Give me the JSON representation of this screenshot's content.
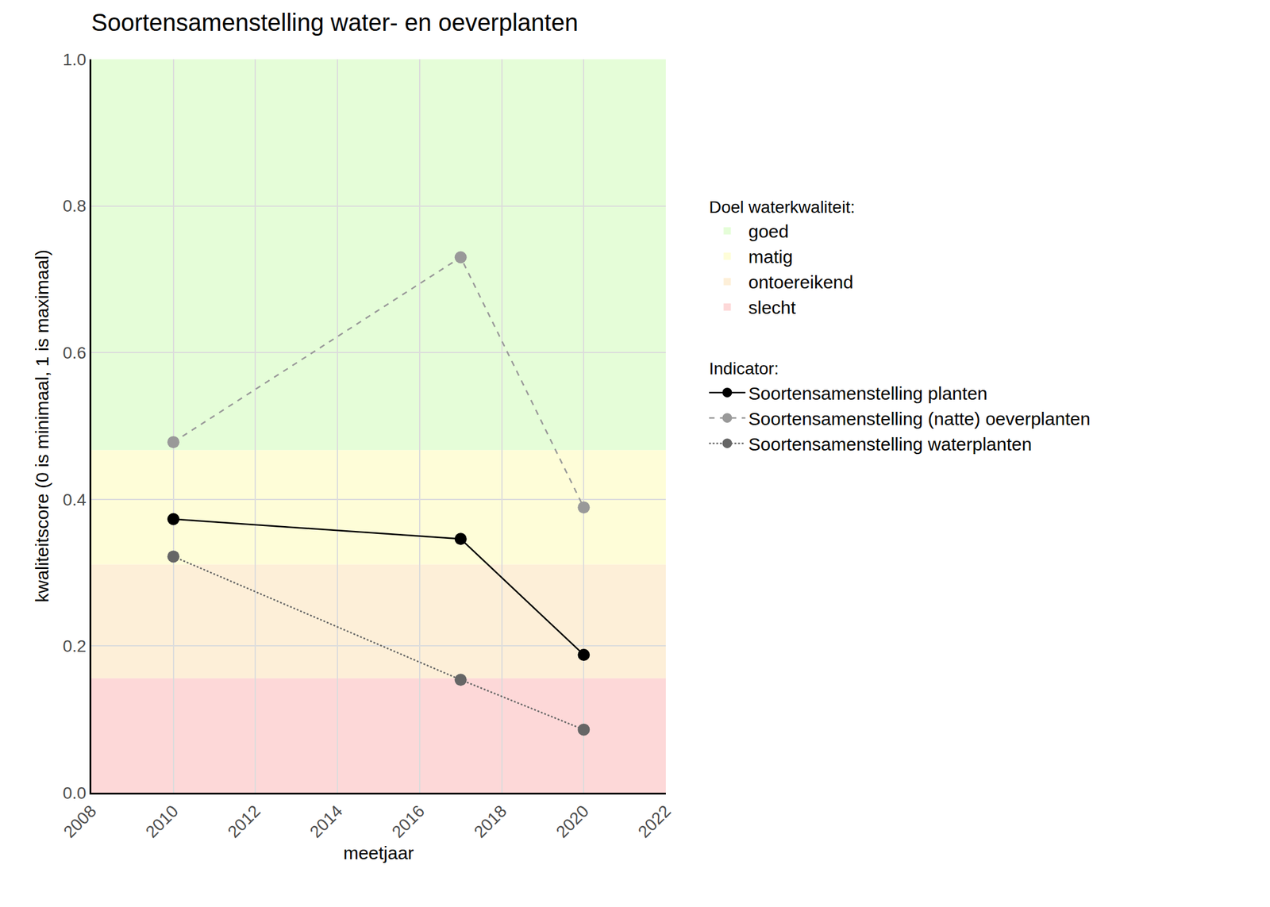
{
  "chart_data": {
    "type": "line",
    "title": "Soortensamenstelling water- en oeverplanten",
    "x_label": "meetjaar",
    "y_label": "kwaliteitscore (0 is minimaal, 1 is maximaal)",
    "xlim": [
      2008,
      2022
    ],
    "xticks": [
      2008,
      2010,
      2012,
      2014,
      2016,
      2018,
      2020,
      2022
    ],
    "ylim": [
      0,
      1
    ],
    "yticks": [
      {
        "value": 0,
        "label": "0.0"
      },
      0.2,
      0.4,
      0.6,
      0.8,
      {
        "value": 1,
        "label": "1.0"
      }
    ],
    "grid": true,
    "legend": "right",
    "bands_title": "Doel waterkwaliteit:",
    "bands": [
      {
        "name": "goed",
        "color": "#e5fdd8",
        "from": 0.467,
        "to": 1.0
      },
      {
        "name": "matig",
        "color": "#fefdd8",
        "from": 0.311,
        "to": 0.467
      },
      {
        "name": "ontoereikend",
        "color": "#fdefd8",
        "from": 0.156,
        "to": 0.311
      },
      {
        "name": "slecht",
        "color": "#fdd8d8",
        "from": 0.0,
        "to": 0.156
      }
    ],
    "series_title": "Indicator:",
    "x": [
      2010,
      2017,
      2020
    ],
    "series": [
      {
        "name": "Soortensamenstelling planten",
        "color": "#000000",
        "line_style": "solid",
        "marker": "circle",
        "values": [
          0.373,
          0.346,
          0.188
        ]
      },
      {
        "name": "Soortensamenstelling (natte) oeverplanten",
        "color": "#999999",
        "line_style": "dash",
        "marker": "circle",
        "values": [
          0.478,
          0.73,
          0.389
        ]
      },
      {
        "name": "Soortensamenstelling waterplanten",
        "color": "#666666",
        "line_style": "dot",
        "marker": "circle",
        "values": [
          0.322,
          0.154,
          0.086
        ]
      }
    ]
  }
}
